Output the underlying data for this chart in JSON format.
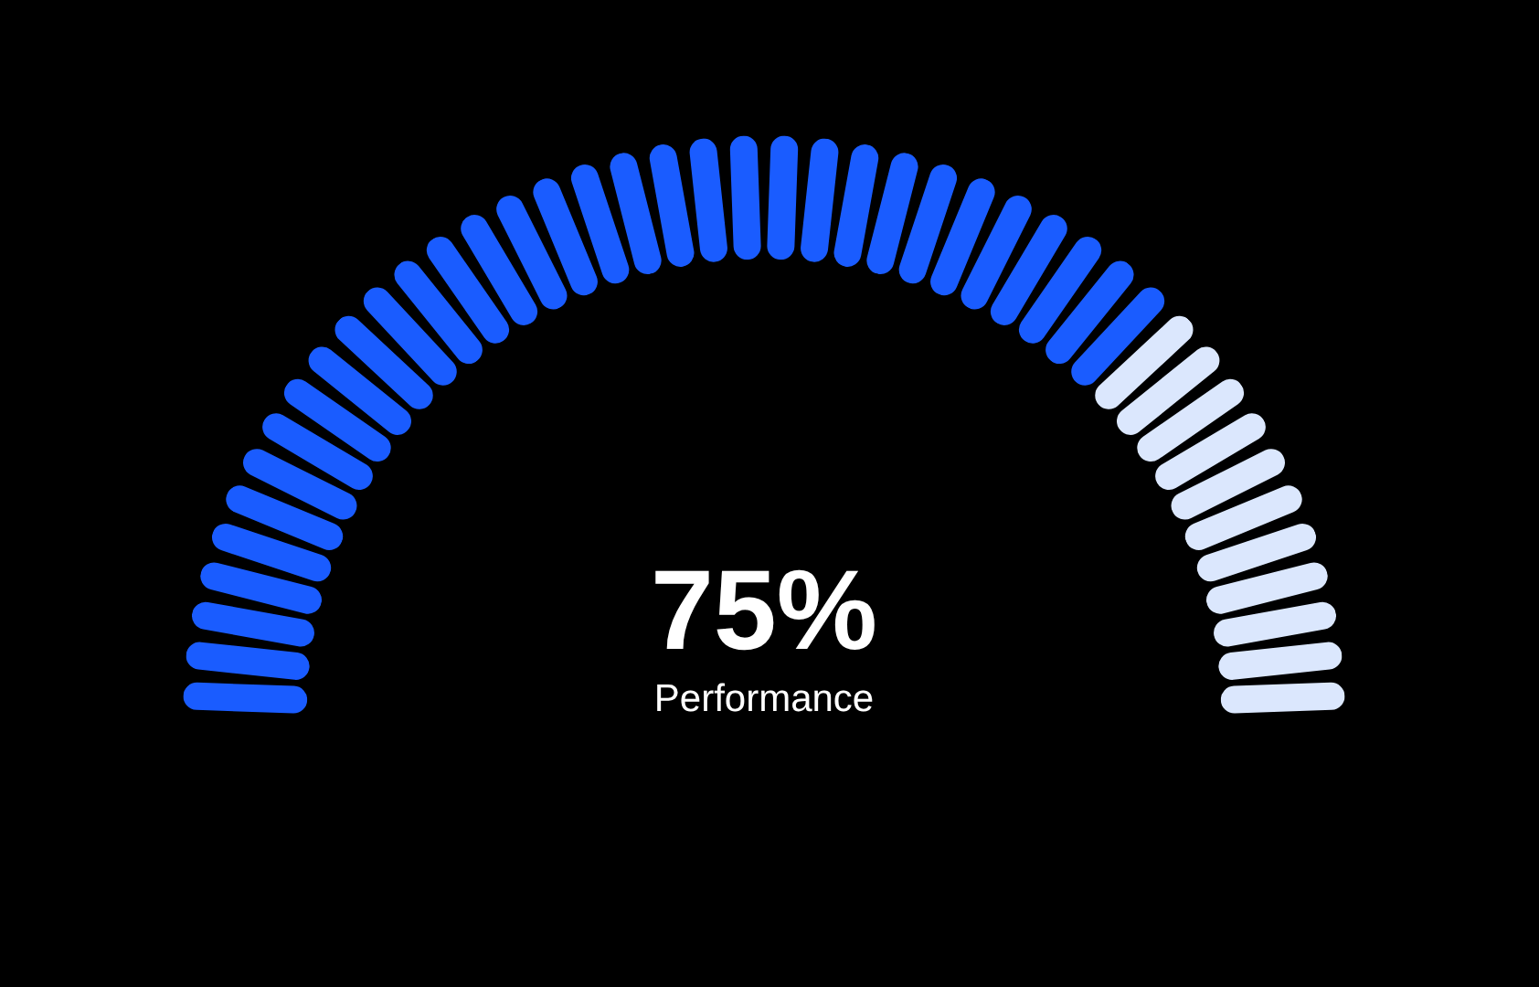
{
  "chart_data": {
    "type": "donut",
    "categories": [
      "Performance",
      null
    ],
    "values": [
      75,
      25
    ],
    "colors": [
      "#1a5cff",
      "#dbe7fd"
    ],
    "value_labels": [
      "75%",
      null
    ]
  }
}
